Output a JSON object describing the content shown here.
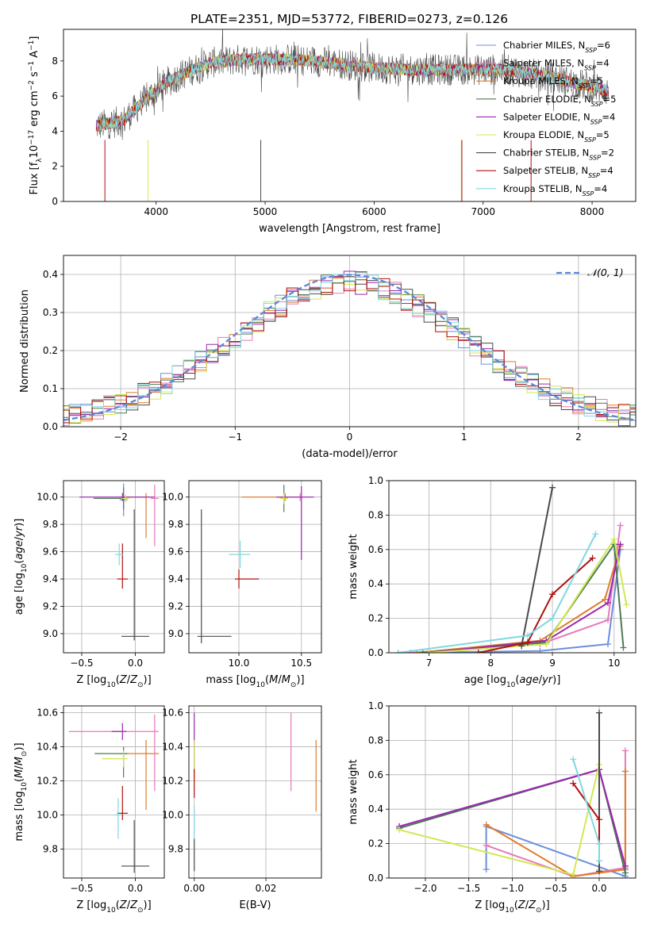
{
  "figure_title": "PLATE=2351, MJD=53772, FIBERID=0273, z=0.126",
  "legend_entries": [
    {
      "label": "Chabrier MILES, N",
      "sub": "SSP",
      "tail": "=6",
      "color": "#6b8fdc"
    },
    {
      "label": "Salpeter MILES, N",
      "sub": "SSP",
      "tail": "=4",
      "color": "#e67ab9"
    },
    {
      "label": "Kroupa MILES, N",
      "sub": "SSP",
      "tail": "=5",
      "color": "#e07b2a"
    },
    {
      "label": "Chabrier ELODIE, N",
      "sub": "SSP",
      "tail": "=5",
      "color": "#4f7a55"
    },
    {
      "label": "Salpeter ELODIE, N",
      "sub": "SSP",
      "tail": "=4",
      "color": "#9b27b0"
    },
    {
      "label": "Kroupa ELODIE, N",
      "sub": "SSP",
      "tail": "=5",
      "color": "#d2e852"
    },
    {
      "label": "Chabrier STELIB, N",
      "sub": "SSP",
      "tail": "=2",
      "color": "#4a4a4a"
    },
    {
      "label": "Salpeter STELIB, N",
      "sub": "SSP",
      "tail": "=4",
      "color": "#b30f0f"
    },
    {
      "label": "Kroupa STELIB, N",
      "sub": "SSP",
      "tail": "=4",
      "color": "#7fd8e0"
    }
  ],
  "chart_data": [
    {
      "id": "spectrum",
      "type": "line",
      "xlabel": "wavelength [Angstrom, rest frame]",
      "ylabel": "Flux [f_λ 10^-17 erg cm^-2 s^-1 A^-1]",
      "xlim": [
        3150,
        8400
      ],
      "ylim": [
        0,
        9.8
      ],
      "xticks": [
        4000,
        5000,
        6000,
        7000,
        8000
      ],
      "yticks": [
        0,
        2,
        4,
        6,
        8
      ],
      "grid": false,
      "legend": "top-right",
      "data_range": [
        3450,
        8150
      ],
      "continuum": [
        [
          3450,
          4.3
        ],
        [
          3700,
          4.6
        ],
        [
          3900,
          5.8
        ],
        [
          4100,
          6.8
        ],
        [
          4300,
          7.4
        ],
        [
          4500,
          7.9
        ],
        [
          4800,
          8.1
        ],
        [
          5200,
          8.1
        ],
        [
          5600,
          7.9
        ],
        [
          6000,
          7.6
        ],
        [
          6400,
          7.5
        ],
        [
          6800,
          7.5
        ],
        [
          7200,
          7.5
        ],
        [
          7600,
          7.1
        ],
        [
          8150,
          6.3
        ]
      ],
      "dips": [
        [
          3530,
          "#b30f0f"
        ],
        [
          3925,
          "#d2e852"
        ],
        [
          4960,
          "#4a4a4a"
        ],
        [
          6800,
          "#d2e852"
        ],
        [
          6805,
          "#b30f0f"
        ],
        [
          7440,
          "#b30f0f"
        ]
      ],
      "note": "model spectra of the nine fits overlaid on the observed spectrum"
    },
    {
      "id": "residual_hist",
      "type": "bar",
      "xlabel": "(data-model)/error",
      "ylabel": "Normed distribution",
      "xlim": [
        -2.5,
        2.5
      ],
      "ylim": [
        0,
        0.45
      ],
      "xticks": [
        -2,
        -1,
        0,
        1,
        2
      ],
      "yticks": [
        0.0,
        0.1,
        0.2,
        0.3,
        0.4
      ],
      "grid": true,
      "legend": "top-right",
      "gaussian_label": "N(0,1)",
      "gaussian_color": "#5b87d8"
    },
    {
      "id": "age_vs_Z",
      "type": "scatter",
      "xlabel": "Z [log10(Z/Zsun)]",
      "ylabel": "age [log10(age/yr)]",
      "xlim": [
        -0.67,
        0.27
      ],
      "ylim": [
        8.86,
        10.12
      ],
      "xticks": [
        -0.5,
        0.0
      ],
      "yticks": [
        9.0,
        9.2,
        9.4,
        9.6,
        9.8,
        10.0
      ],
      "grid": true,
      "points": [
        {
          "series": "Chabrier MILES",
          "x": -0.11,
          "y": 9.98,
          "xerr": [
            0.0,
            0.0
          ],
          "yerr": [
            0.12,
            0.12
          ]
        },
        {
          "series": "Salpeter MILES",
          "x": 0.18,
          "y": 9.99,
          "xerr": [
            0.0,
            0.03
          ],
          "yerr": [
            0.35,
            0.1
          ]
        },
        {
          "series": "Kroupa MILES",
          "x": 0.1,
          "y": 10.0,
          "xerr": [
            0.25,
            0.0
          ],
          "yerr": [
            0.3,
            0.0
          ]
        },
        {
          "series": "Chabrier ELODIE",
          "x": -0.11,
          "y": 9.99,
          "xerr": [
            0.28,
            0.0
          ],
          "yerr": [
            0.08,
            0.08
          ]
        },
        {
          "series": "Salpeter ELODIE",
          "x": -0.12,
          "y": 10.0,
          "xerr": [
            0.4,
            0.3
          ],
          "yerr": [
            0.03,
            0.03
          ]
        },
        {
          "series": "Kroupa ELODIE",
          "x": -0.09,
          "y": 9.99,
          "xerr": [
            0.0,
            0.02
          ],
          "yerr": [
            0.0,
            0.0
          ]
        },
        {
          "series": "Chabrier STELIB",
          "x": -0.01,
          "y": 8.98,
          "xerr": [
            0.12,
            0.14
          ],
          "yerr": [
            0.0,
            0.93
          ]
        },
        {
          "series": "Salpeter STELIB",
          "x": -0.12,
          "y": 9.4,
          "xerr": [
            0.05,
            0.05
          ],
          "yerr": [
            0.07,
            0.26
          ]
        },
        {
          "series": "Kroupa STELIB",
          "x": -0.15,
          "y": 9.58,
          "xerr": [
            0.03,
            0.03
          ],
          "yerr": [
            0.08,
            0.08
          ]
        }
      ]
    },
    {
      "id": "age_vs_mass",
      "type": "scatter",
      "xlabel": "mass [log10(M/Msun)]",
      "ylabel": "",
      "xlim": [
        9.6,
        10.66
      ],
      "ylim": [
        8.86,
        10.12
      ],
      "xticks": [
        10.0,
        10.5
      ],
      "yticks": [
        9.0,
        9.2,
        9.4,
        9.6,
        9.8,
        10.0
      ],
      "grid": true,
      "points": [
        {
          "series": "Salpeter MILES",
          "x": 10.49,
          "y": 10.0,
          "xerr": [
            0.0,
            0.0
          ],
          "yerr": [
            0.0,
            0.0
          ]
        },
        {
          "series": "Kroupa MILES",
          "x": 10.37,
          "y": 10.0,
          "xerr": [
            0.35,
            0.1
          ],
          "yerr": [
            0.0,
            0.0
          ]
        },
        {
          "series": "Chabrier ELODIE",
          "x": 10.36,
          "y": 9.99,
          "xerr": [
            0.0,
            0.0
          ],
          "yerr": [
            0.1,
            0.1
          ]
        },
        {
          "series": "Salpeter ELODIE",
          "x": 10.5,
          "y": 10.0,
          "xerr": [
            0.2,
            0.1
          ],
          "yerr": [
            0.46,
            0.08
          ]
        },
        {
          "series": "Kroupa ELODIE",
          "x": 10.36,
          "y": 9.99,
          "xerr": [
            0.0,
            0.0
          ],
          "yerr": [
            0.04,
            0.04
          ]
        },
        {
          "series": "Chabrier STELIB",
          "x": 9.7,
          "y": 8.98,
          "xerr": [
            0.0,
            0.24
          ],
          "yerr": [
            0.05,
            0.93
          ]
        },
        {
          "series": "Salpeter STELIB",
          "x": 10.0,
          "y": 9.4,
          "xerr": [
            0.0,
            0.16
          ],
          "yerr": [
            0.07,
            0.07
          ]
        },
        {
          "series": "Kroupa STELIB",
          "x": 10.01,
          "y": 9.58,
          "xerr": [
            0.09,
            0.08
          ],
          "yerr": [
            0.1,
            0.1
          ]
        }
      ]
    },
    {
      "id": "weight_vs_age",
      "type": "line",
      "xlabel": "age [log10(age/yr)]",
      "ylabel": "mass weight",
      "xlim": [
        6.35,
        10.35
      ],
      "ylim": [
        0.0,
        1.0
      ],
      "xticks": [
        7,
        8,
        9,
        10
      ],
      "yticks": [
        0.0,
        0.2,
        0.4,
        0.6,
        0.8,
        1.0
      ],
      "grid": true,
      "series": [
        {
          "name": "Chabrier MILES",
          "points": [
            [
              6.5,
              0.0
            ],
            [
              8.8,
              0.01
            ],
            [
              9.9,
              0.05
            ],
            [
              10.1,
              0.6
            ]
          ]
        },
        {
          "name": "Salpeter MILES",
          "points": [
            [
              6.7,
              0.0
            ],
            [
              8.8,
              0.05
            ],
            [
              9.9,
              0.19
            ],
            [
              10.1,
              0.74
            ]
          ]
        },
        {
          "name": "Kroupa MILES",
          "points": [
            [
              6.8,
              0.0
            ],
            [
              8.8,
              0.07
            ],
            [
              9.85,
              0.31
            ],
            [
              10.1,
              0.62
            ]
          ]
        },
        {
          "name": "Chabrier ELODIE",
          "points": [
            [
              6.9,
              0.0
            ],
            [
              8.9,
              0.06
            ],
            [
              10.0,
              0.63
            ],
            [
              10.15,
              0.03
            ]
          ]
        },
        {
          "name": "Salpeter ELODIE",
          "points": [
            [
              7.0,
              0.0
            ],
            [
              8.9,
              0.07
            ],
            [
              9.9,
              0.29
            ],
            [
              10.1,
              0.63
            ]
          ]
        },
        {
          "name": "Kroupa ELODIE",
          "points": [
            [
              7.0,
              0.0
            ],
            [
              8.9,
              0.05
            ],
            [
              10.0,
              0.66
            ],
            [
              10.2,
              0.28
            ]
          ]
        },
        {
          "name": "Chabrier STELIB",
          "points": [
            [
              8.5,
              0.04
            ],
            [
              9.0,
              0.96
            ]
          ]
        },
        {
          "name": "Salpeter STELIB",
          "points": [
            [
              7.8,
              0.0
            ],
            [
              8.6,
              0.06
            ],
            [
              9.0,
              0.34
            ],
            [
              9.65,
              0.55
            ]
          ]
        },
        {
          "name": "Kroupa STELIB",
          "points": [
            [
              6.5,
              0.0
            ],
            [
              8.6,
              0.1
            ],
            [
              9.0,
              0.2
            ],
            [
              9.7,
              0.69
            ]
          ]
        }
      ]
    },
    {
      "id": "mass_vs_Z",
      "type": "scatter",
      "xlabel": "Z [log10(Z/Zsun)]",
      "ylabel": "mass [log10(M/Msun)]",
      "xlim": [
        -0.67,
        0.27
      ],
      "ylim": [
        9.63,
        10.64
      ],
      "xticks": [
        -0.5,
        0.0
      ],
      "yticks": [
        9.8,
        10.0,
        10.2,
        10.4,
        10.6
      ],
      "grid": true,
      "points": [
        {
          "series": "Salpeter MILES",
          "x": 0.18,
          "y": 10.49,
          "xerr": [
            0.8,
            0.0
          ],
          "yerr": [
            0.35,
            0.1
          ]
        },
        {
          "series": "Kroupa MILES",
          "x": 0.1,
          "y": 10.36,
          "xerr": [
            0.25,
            0.12
          ],
          "yerr": [
            0.33,
            0.08
          ]
        },
        {
          "series": "Chabrier ELODIE",
          "x": -0.11,
          "y": 10.36,
          "xerr": [
            0.27,
            0.0
          ],
          "yerr": [
            0.14,
            0.04
          ]
        },
        {
          "series": "Salpeter ELODIE",
          "x": -0.12,
          "y": 10.49,
          "xerr": [
            0.1,
            0.0
          ],
          "yerr": [
            0.05,
            0.05
          ]
        },
        {
          "series": "Kroupa ELODIE",
          "x": -0.11,
          "y": 10.33,
          "xerr": [
            0.2,
            0.0
          ],
          "yerr": [
            0.05,
            0.05
          ]
        },
        {
          "series": "Chabrier STELIB",
          "x": -0.01,
          "y": 9.7,
          "xerr": [
            0.12,
            0.14
          ],
          "yerr": [
            0.04,
            0.27
          ]
        },
        {
          "series": "Salpeter STELIB",
          "x": -0.12,
          "y": 10.01,
          "xerr": [
            0.05,
            0.05
          ],
          "yerr": [
            0.04,
            0.16
          ]
        },
        {
          "series": "Kroupa STELIB",
          "x": -0.16,
          "y": 10.0,
          "xerr": [
            0.03,
            0.0
          ],
          "yerr": [
            0.14,
            0.1
          ]
        }
      ]
    },
    {
      "id": "mass_vs_ebv",
      "type": "scatter",
      "xlabel": "E(B-V)",
      "ylabel": "",
      "xlim": [
        -0.0015,
        0.0355
      ],
      "ylim": [
        9.63,
        10.64
      ],
      "xticks": [
        0.0,
        0.02
      ],
      "yticks": [
        9.8,
        10.0,
        10.2,
        10.4,
        10.6
      ],
      "grid": true,
      "points": [
        {
          "series": "Salpeter MILES",
          "x": 0.027,
          "y": 10.6,
          "xerr": [
            0,
            0
          ],
          "yerr": [
            0.46,
            0.0
          ]
        },
        {
          "series": "Kroupa MILES",
          "x": 0.034,
          "y": 10.44,
          "xerr": [
            0,
            0
          ],
          "yerr": [
            0.42,
            0.0
          ]
        },
        {
          "series": "Salpeter ELODIE",
          "x": 0.0,
          "y": 10.6,
          "xerr": [
            0,
            0
          ],
          "yerr": [
            0.38,
            0.0
          ]
        },
        {
          "series": "Kroupa ELODIE",
          "x": 0.0,
          "y": 10.44,
          "xerr": [
            0,
            0
          ],
          "yerr": [
            0.28,
            0.0
          ]
        },
        {
          "series": "Salpeter STELIB",
          "x": 0.0,
          "y": 10.27,
          "xerr": [
            0,
            0
          ],
          "yerr": [
            0.17,
            0.0
          ]
        },
        {
          "series": "Kroupa STELIB",
          "x": 0.0,
          "y": 10.05,
          "xerr": [
            0,
            0
          ],
          "yerr": [
            0.19,
            0.0
          ]
        },
        {
          "series": "Chabrier STELIB",
          "x": 0.0,
          "y": 9.86,
          "xerr": [
            0,
            0
          ],
          "yerr": [
            0.19,
            0.0
          ]
        }
      ]
    },
    {
      "id": "weight_vs_Z",
      "type": "line",
      "xlabel": "Z [log10(Z/Zsun)]",
      "ylabel": "mass weight",
      "xlim": [
        -2.42,
        0.42
      ],
      "ylim": [
        0.0,
        1.0
      ],
      "xticks": [
        -2.0,
        -1.5,
        -1.0,
        -0.5,
        0.0
      ],
      "yticks": [
        0.0,
        0.2,
        0.4,
        0.6,
        0.8,
        1.0
      ],
      "grid": true,
      "series": [
        {
          "name": "Chabrier MILES",
          "points": [
            [
              -1.3,
              0.05
            ],
            [
              -1.3,
              0.3
            ],
            [
              0.3,
              0.01
            ],
            [
              0.3,
              0.05
            ]
          ]
        },
        {
          "name": "Salpeter MILES",
          "points": [
            [
              -1.3,
              0.19
            ],
            [
              -0.3,
              0.01
            ],
            [
              0.3,
              0.06
            ],
            [
              0.3,
              0.74
            ]
          ]
        },
        {
          "name": "Kroupa MILES",
          "points": [
            [
              -1.3,
              0.31
            ],
            [
              -0.3,
              0.01
            ],
            [
              0.3,
              0.05
            ],
            [
              0.3,
              0.62
            ]
          ]
        },
        {
          "name": "Chabrier ELODIE",
          "points": [
            [
              -2.3,
              0.29
            ],
            [
              0.0,
              0.63
            ],
            [
              0.3,
              0.03
            ]
          ]
        },
        {
          "name": "Salpeter ELODIE",
          "points": [
            [
              -2.3,
              0.3
            ],
            [
              0.0,
              0.63
            ],
            [
              0.3,
              0.07
            ]
          ]
        },
        {
          "name": "Kroupa ELODIE",
          "points": [
            [
              -2.3,
              0.28
            ],
            [
              -0.3,
              0.02
            ],
            [
              0.0,
              0.66
            ],
            [
              0.0,
              0.05
            ]
          ]
        },
        {
          "name": "Chabrier STELIB",
          "points": [
            [
              0.0,
              0.96
            ],
            [
              0.0,
              0.04
            ]
          ]
        },
        {
          "name": "Salpeter STELIB",
          "points": [
            [
              -0.3,
              0.55
            ],
            [
              0.0,
              0.34
            ],
            [
              0.0,
              0.2
            ]
          ]
        },
        {
          "name": "Kroupa STELIB",
          "points": [
            [
              -0.3,
              0.69
            ],
            [
              0.0,
              0.2
            ],
            [
              0.0,
              0.1
            ]
          ]
        }
      ]
    }
  ]
}
